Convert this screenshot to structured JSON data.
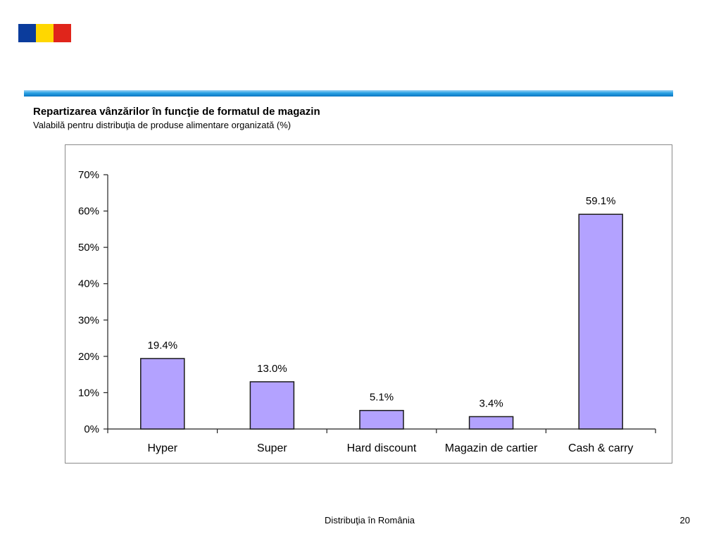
{
  "flag": {
    "colors": [
      "#0b3c9c",
      "#ffd700",
      "#e0251b"
    ]
  },
  "slide": {
    "title": "Repartizarea vânzărilor în funcţie de formatul de magazin",
    "subtitle": "Valabilă pentru distribuţia de produse alimentare organizată (%)",
    "footer": "Distribuţia în România",
    "page_number": "20"
  },
  "chart_data": {
    "type": "bar",
    "categories": [
      "Hyper",
      "Super",
      "Hard discount",
      "Magazin de cartier",
      "Cash & carry"
    ],
    "values": [
      19.4,
      13.0,
      5.1,
      3.4,
      59.1
    ],
    "value_labels": [
      "19.4%",
      "13.0%",
      "5.1%",
      "3.4%",
      "59.1%"
    ],
    "ylim": [
      0,
      70
    ],
    "yticks": [
      0,
      10,
      20,
      30,
      40,
      50,
      60,
      70
    ],
    "ytick_labels": [
      "0%",
      "10%",
      "20%",
      "30%",
      "40%",
      "50%",
      "60%",
      "70%"
    ],
    "bar_color": "#b3a2ff",
    "bar_stroke": "#1a1a1a",
    "grid": false
  }
}
